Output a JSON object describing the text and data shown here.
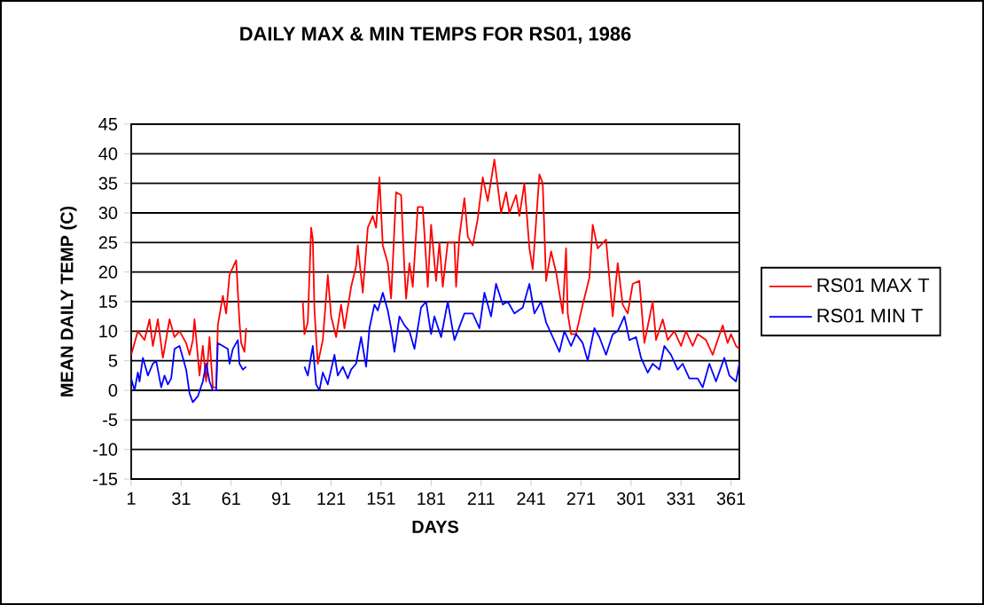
{
  "chart_data": {
    "type": "line",
    "title": "DAILY MAX & MIN TEMPS FOR RS01, 1986",
    "xlabel": "DAYS",
    "ylabel": "MEAN DAILY TEMP (C)",
    "xlim": [
      1,
      366
    ],
    "xticks": [
      1,
      31,
      61,
      91,
      121,
      151,
      181,
      211,
      241,
      271,
      301,
      331,
      361
    ],
    "ylim": [
      -15,
      45
    ],
    "yticks": [
      -15,
      -10,
      -5,
      0,
      5,
      10,
      15,
      20,
      25,
      30,
      35,
      40,
      45
    ],
    "grid": "y",
    "legend": "right",
    "marker": "none",
    "line_style": "solid",
    "series": [
      {
        "name": "RS01 MAX T",
        "color": "#ff0000",
        "x": [
          1,
          5,
          9,
          12,
          14,
          17,
          20,
          21,
          24,
          27,
          30,
          34,
          36,
          38,
          39,
          42,
          44,
          46,
          48,
          50,
          52,
          53,
          56,
          58,
          60,
          64,
          66,
          67,
          69,
          70,
          71,
          104,
          105,
          107,
          109,
          110,
          111,
          113,
          116,
          119,
          121,
          124,
          127,
          129,
          133,
          136,
          137,
          140,
          143,
          146,
          148,
          150,
          152,
          155,
          157,
          160,
          163,
          165,
          166,
          168,
          170,
          173,
          176,
          179,
          181,
          184,
          186,
          188,
          191,
          195,
          196,
          198,
          201,
          203,
          206,
          209,
          212,
          215,
          219,
          223,
          226,
          228,
          232,
          234,
          237,
          240,
          242,
          246,
          248,
          250,
          253,
          256,
          260,
          262,
          263,
          265,
          268,
          272,
          276,
          278,
          281,
          286,
          290,
          293,
          296,
          299,
          302,
          306,
          309,
          314,
          316,
          320,
          323,
          327,
          331,
          334,
          338,
          341,
          346,
          350,
          353,
          356,
          359,
          361,
          364,
          366
        ],
        "values": [
          6,
          10,
          8.5,
          12,
          7.5,
          12,
          5.5,
          7,
          12,
          9,
          10,
          8,
          6,
          8.5,
          12,
          2.5,
          7.5,
          1.5,
          9,
          0.5,
          0.5,
          11,
          16,
          13,
          19.5,
          22,
          11.5,
          8,
          6.5,
          10.5,
          null,
          15,
          9.5,
          11.5,
          27.5,
          25.5,
          13.5,
          4.5,
          8.5,
          19.5,
          12.5,
          9,
          14.5,
          10.5,
          17.5,
          21,
          24.5,
          16.5,
          27.5,
          29.5,
          27.5,
          36,
          24.5,
          21.5,
          15.5,
          33.5,
          33,
          20.5,
          15.5,
          21.5,
          17.5,
          31,
          31,
          17.5,
          28,
          18.5,
          25,
          17.5,
          25,
          25,
          17.5,
          26,
          32.5,
          26,
          24.5,
          29,
          36,
          32,
          39,
          30,
          33.5,
          30,
          33,
          29.5,
          35,
          24,
          20.5,
          36.5,
          35,
          18.5,
          23.5,
          20,
          13,
          24,
          13,
          9.5,
          9.5,
          14.5,
          19,
          28,
          24,
          25.5,
          12.5,
          21.5,
          14.5,
          13,
          18,
          18.5,
          8,
          15,
          8.5,
          12,
          8.5,
          10,
          7.5,
          10,
          7.5,
          9.5,
          8.5,
          6,
          8.5,
          11,
          8,
          9.5,
          7.5,
          7
        ]
      },
      {
        "name": "RS01 MIN T",
        "color": "#0000ff",
        "x": [
          1,
          3,
          5,
          6,
          8,
          11,
          14,
          16,
          19,
          21,
          23,
          25,
          27,
          30,
          32,
          34,
          36,
          38,
          41,
          44,
          46,
          48,
          50,
          52,
          53,
          56,
          59,
          60,
          62,
          65,
          66,
          68,
          70,
          71,
          105,
          107,
          110,
          112,
          114,
          116,
          119,
          123,
          125,
          128,
          131,
          133,
          136,
          139,
          142,
          144,
          147,
          149,
          152,
          155,
          157,
          159,
          162,
          165,
          168,
          171,
          175,
          178,
          181,
          183,
          187,
          191,
          195,
          201,
          206,
          210,
          213,
          217,
          220,
          224,
          227,
          231,
          236,
          240,
          243,
          247,
          250,
          254,
          258,
          261,
          265,
          268,
          272,
          275,
          279,
          282,
          286,
          290,
          293,
          297,
          300,
          304,
          307,
          311,
          314,
          318,
          321,
          325,
          329,
          332,
          336,
          341,
          344,
          348,
          352,
          357,
          360,
          364,
          366
        ],
        "values": [
          2,
          0,
          3,
          1.5,
          5.5,
          2.5,
          4.5,
          5,
          0.5,
          2.5,
          1,
          2,
          7,
          7.5,
          5.5,
          3.5,
          -0.5,
          -2,
          -1,
          1.5,
          4.5,
          1.5,
          0,
          0,
          8,
          7.5,
          7,
          4.5,
          7,
          8.5,
          4.5,
          3.5,
          4,
          null,
          4,
          2.5,
          7.5,
          1,
          0,
          3,
          1,
          6,
          2.5,
          4,
          2,
          3.5,
          4.5,
          9,
          4,
          10.5,
          14.5,
          13.5,
          16.5,
          13.5,
          10.5,
          6.5,
          12.5,
          11,
          10,
          7,
          14,
          15,
          9.5,
          12.5,
          9,
          15,
          8.5,
          13,
          13,
          10.5,
          16.5,
          12.5,
          18,
          14.5,
          15,
          13,
          14,
          18,
          13,
          15,
          11.5,
          9,
          6.5,
          10,
          7.5,
          9.5,
          8,
          5,
          10.5,
          9,
          6,
          9.5,
          10,
          12.5,
          8.5,
          9,
          5.5,
          3,
          4.5,
          3.5,
          7.5,
          6,
          3.5,
          4.5,
          2,
          2,
          0.5,
          4.5,
          1.5,
          5.5,
          2.5,
          1.5,
          4.5
        ]
      }
    ]
  }
}
